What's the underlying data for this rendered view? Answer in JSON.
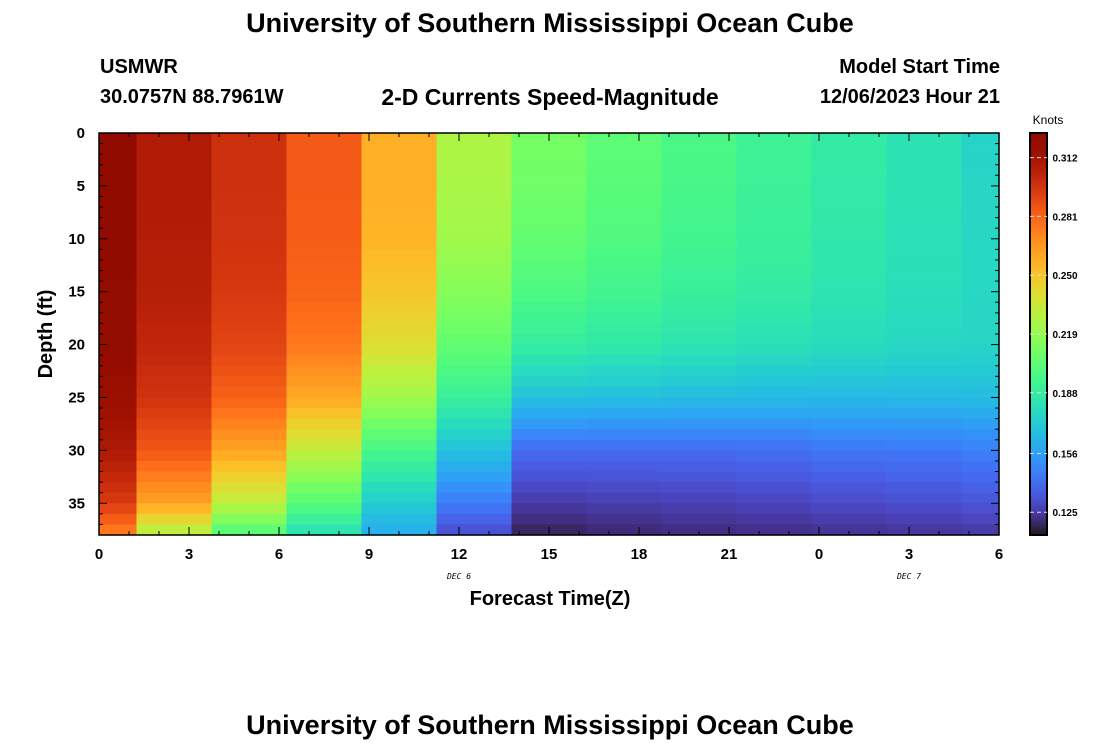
{
  "page": {
    "title_top": "University of Southern Mississippi Ocean Cube",
    "station_id": "USMWR",
    "station_coords": "30.0757N  88.7961W",
    "subtitle": "2-D Currents Speed-Magnitude",
    "model_start_label": "Model Start Time",
    "model_start_value": "12/06/2023 Hour 21",
    "title_bottom": "University of Southern Mississippi Ocean Cube"
  },
  "chart_data": {
    "type": "heatmap",
    "xlabel": "Forecast Time(Z)",
    "ylabel": "Depth (ft)",
    "x_tick_labels": [
      "0",
      "3",
      "6",
      "9",
      "12",
      "15",
      "18",
      "21",
      "0",
      "3",
      "6"
    ],
    "x_date_labels": [
      {
        "text": "DEC 6",
        "at_hour": 12
      },
      {
        "text": "DEC 7",
        "at_hour": 27
      }
    ],
    "xlim": [
      0,
      30
    ],
    "ylim": [
      0,
      38
    ],
    "y_inverted": true,
    "y_ticks": [
      0,
      5,
      10,
      15,
      20,
      25,
      30,
      35
    ],
    "colorbar": {
      "label": "Knots",
      "ticks": [
        "0.312",
        "0.281",
        "0.250",
        "0.219",
        "0.188",
        "0.156",
        "0.125"
      ],
      "tick_values": [
        0.312,
        0.281,
        0.25,
        0.219,
        0.188,
        0.156,
        0.125
      ],
      "range": [
        0.113,
        0.325
      ],
      "colormap": "turbo"
    },
    "time_hours": [
      0,
      2.5,
      5,
      7.5,
      10,
      12.5,
      15,
      17.5,
      20,
      22.5,
      25,
      27.5,
      29.5
    ],
    "column_edges_hours": [
      0,
      1.25,
      3.75,
      6.25,
      8.75,
      11.25,
      13.75,
      16.25,
      18.75,
      21.25,
      23.75,
      26.25,
      28.75,
      30
    ],
    "depth_levels_ft": [
      0,
      5,
      10,
      15,
      20,
      25,
      30,
      35,
      38
    ],
    "speed_knots": [
      [
        0.322,
        0.322,
        0.322,
        0.321,
        0.32,
        0.315,
        0.308,
        0.294,
        0.272
      ],
      [
        0.307,
        0.307,
        0.306,
        0.305,
        0.302,
        0.297,
        0.285,
        0.262,
        0.225
      ],
      [
        0.298,
        0.298,
        0.297,
        0.295,
        0.291,
        0.282,
        0.262,
        0.23,
        0.198
      ],
      [
        0.284,
        0.284,
        0.283,
        0.281,
        0.275,
        0.26,
        0.232,
        0.201,
        0.18
      ],
      [
        0.258,
        0.258,
        0.256,
        0.25,
        0.24,
        0.222,
        0.196,
        0.172,
        0.16
      ],
      [
        0.226,
        0.225,
        0.222,
        0.215,
        0.205,
        0.19,
        0.168,
        0.145,
        0.13
      ],
      [
        0.21,
        0.209,
        0.205,
        0.198,
        0.188,
        0.168,
        0.14,
        0.125,
        0.117
      ],
      [
        0.203,
        0.202,
        0.199,
        0.194,
        0.186,
        0.167,
        0.14,
        0.126,
        0.119
      ],
      [
        0.197,
        0.196,
        0.194,
        0.19,
        0.183,
        0.166,
        0.14,
        0.127,
        0.12
      ],
      [
        0.192,
        0.191,
        0.19,
        0.187,
        0.181,
        0.165,
        0.141,
        0.128,
        0.121
      ],
      [
        0.187,
        0.186,
        0.185,
        0.183,
        0.179,
        0.165,
        0.143,
        0.13,
        0.122
      ],
      [
        0.182,
        0.182,
        0.181,
        0.18,
        0.177,
        0.165,
        0.144,
        0.131,
        0.123
      ],
      [
        0.175,
        0.176,
        0.177,
        0.177,
        0.176,
        0.166,
        0.146,
        0.133,
        0.124
      ]
    ]
  }
}
